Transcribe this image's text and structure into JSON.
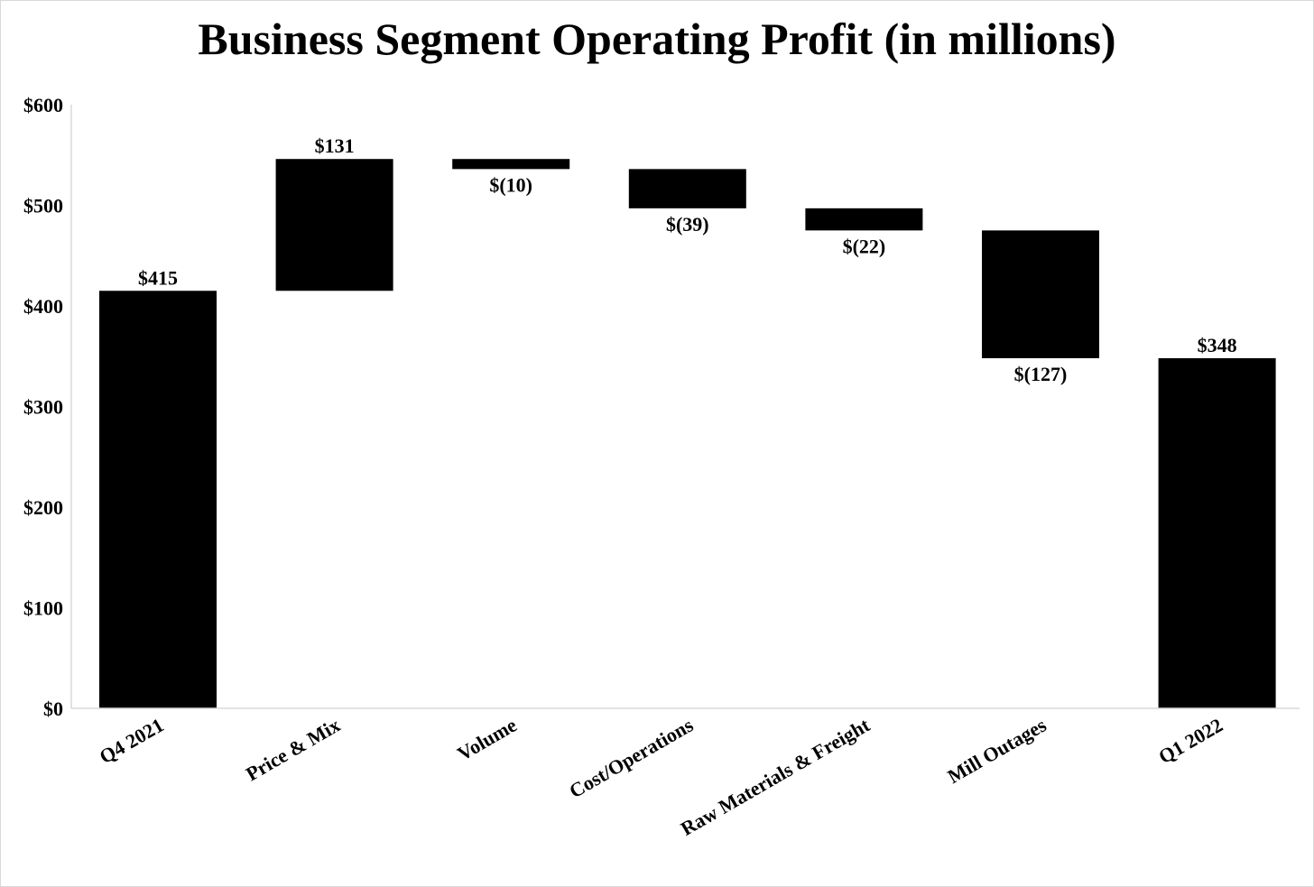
{
  "chart_data": {
    "type": "waterfall",
    "title": "Business Segment Operating Profit (in millions)",
    "xlabel": "",
    "ylabel": "",
    "ylim": [
      0,
      600
    ],
    "yticks": [
      0,
      100,
      200,
      300,
      400,
      500,
      600
    ],
    "ytick_labels": [
      "$0",
      "$100",
      "$200",
      "$300",
      "$400",
      "$500",
      "$600"
    ],
    "grid": false,
    "legend": "none",
    "bar_color": "#000000",
    "categories": [
      "Q4 2021",
      "Price & Mix",
      "Volume",
      "Cost/Operations",
      "Raw Materials & Freight",
      "Mill Outages",
      "Q1 2022"
    ],
    "values": [
      415,
      131,
      -10,
      -39,
      -22,
      -127,
      348
    ],
    "kinds": [
      "total",
      "delta",
      "delta",
      "delta",
      "delta",
      "delta",
      "total"
    ],
    "data_labels": [
      "$415",
      "$131",
      "$(10)",
      "$(39)",
      "$(22)",
      "$(127)",
      "$348"
    ]
  }
}
